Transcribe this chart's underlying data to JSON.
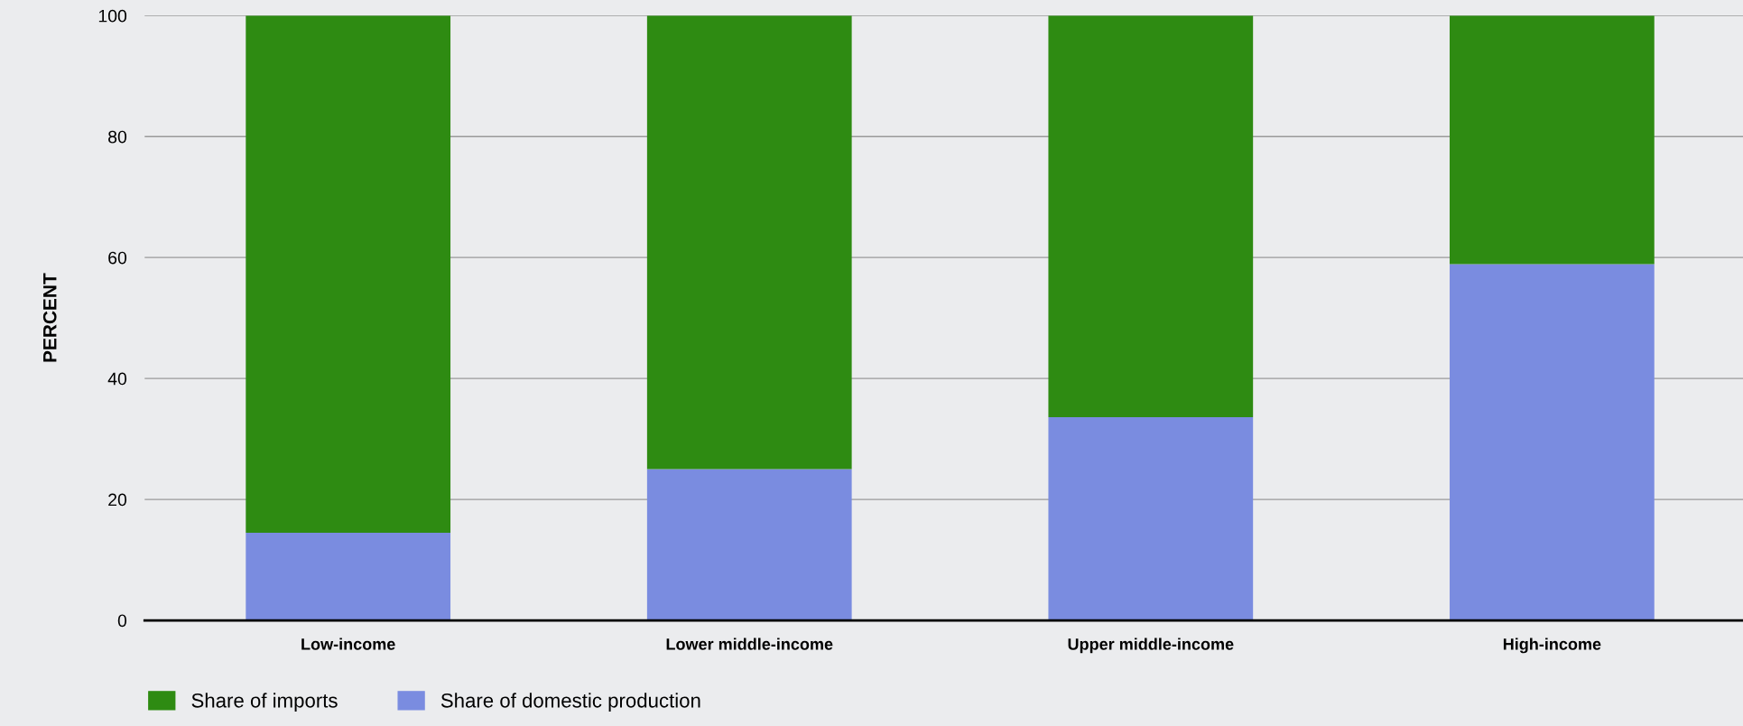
{
  "chart_data": {
    "type": "bar",
    "stacked": true,
    "ylabel": "PERCENT",
    "categories": [
      "Low-income",
      "Lower middle-income",
      "Upper middle-income",
      "High-income"
    ],
    "series": [
      {
        "name": "Share of domestic production",
        "color": "#7a8ce0",
        "values": [
          14.5,
          25.0,
          33.6,
          58.9
        ]
      },
      {
        "name": "Share of imports",
        "color": "#2e8b12",
        "values": [
          85.5,
          75.0,
          66.4,
          41.1
        ]
      }
    ],
    "ylim": [
      0,
      100
    ],
    "yticks": [
      0,
      20,
      40,
      60,
      80,
      100
    ],
    "grid": "y",
    "legend": "bottom left"
  }
}
